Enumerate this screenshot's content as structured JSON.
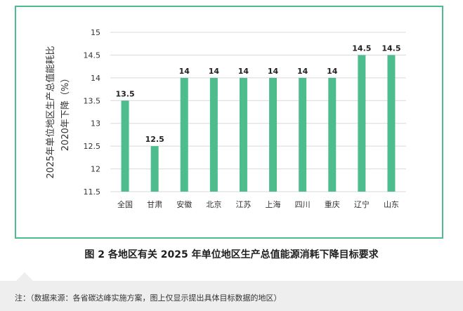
{
  "chart_data": {
    "type": "bar",
    "categories": [
      "全国",
      "甘肃",
      "安徽",
      "北京",
      "江苏",
      "上海",
      "四川",
      "重庆",
      "辽宁",
      "山东"
    ],
    "values": [
      13.5,
      12.5,
      14,
      14,
      14,
      14,
      14,
      14,
      14.5,
      14.5
    ],
    "value_labels": [
      "13.5",
      "12.5",
      "14",
      "14",
      "14",
      "14",
      "14",
      "14",
      "14.5",
      "14.5"
    ],
    "ylabel_line1": "2025年单位地区生产总值能耗比",
    "ylabel_line2": "2020年下降（%）",
    "yticks": [
      "11.5",
      "12",
      "12.5",
      "13",
      "13.5",
      "14",
      "14.5",
      "15"
    ],
    "ylim": [
      11.5,
      15
    ],
    "grid": true,
    "bar_color": "#4dbd8e"
  },
  "caption": "图 2  各地区有关 2025 年单位地区生产总值能源消耗下降目标要求",
  "note": "注：（数据来源：各省碳达峰实施方案，图上仅显示提出具体目标数据的地区）",
  "colors": {
    "frame": "#4dbd8e",
    "grid": "#d9d9d9",
    "note_bg": "#eeeeee"
  }
}
